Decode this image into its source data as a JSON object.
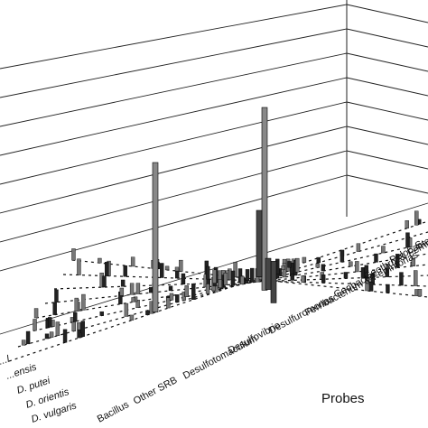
{
  "chart_data": {
    "type": "bar3d",
    "xlabel": "Probes",
    "ylabel": "",
    "grid": true,
    "probe_labels": [
      "Bacillus",
      "Other SRB",
      "Desulfotomaculum",
      "Desulfovibrio",
      "Desulfuromonas",
      "Ferribacterium & Ferrimonas",
      "Geobacter",
      "Geothrix & Ferrimonas",
      "Pelobacter",
      "S"
    ],
    "row_labels": [
      "D. vulgaris",
      "D. orientis",
      "D. putei",
      "...ensis",
      "...l"
    ],
    "zlim": [
      0,
      10
    ],
    "tall_bars": [
      {
        "probe": "Desulfotomaculum",
        "row": 2,
        "value": 7.2
      },
      {
        "probe": "Desulfovibrio",
        "row": 2,
        "value": 8.8
      },
      {
        "probe": "Desulfovibrio",
        "row": 3,
        "value": 3.2
      },
      {
        "probe": "Desulfuromonas",
        "row": 1,
        "value": 2.0
      },
      {
        "probe": "Desulfuromonas",
        "row": 2,
        "value": 1.5
      }
    ]
  }
}
